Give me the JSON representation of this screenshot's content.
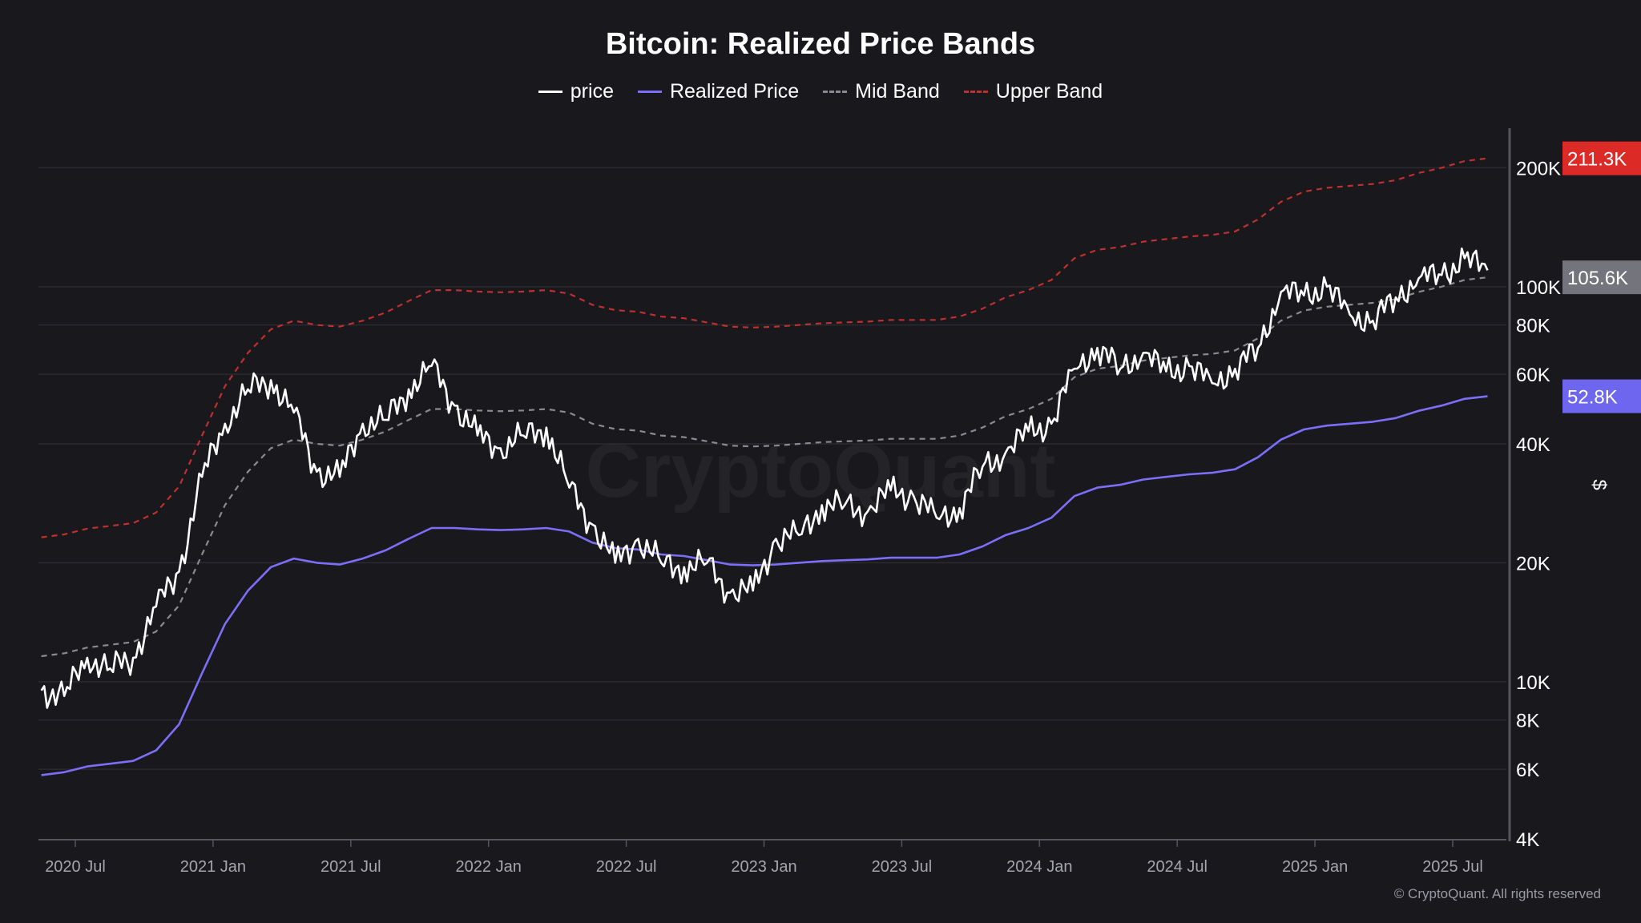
{
  "title": "Bitcoin: Realized Price Bands",
  "footer": "© CryptoQuant. All rights reserved",
  "watermark": "CryptoQuant",
  "colors": {
    "price": "#ffffff",
    "realized": "#7b6ff7",
    "mid": "#8a8a90",
    "upper": "#c0302d",
    "upper_badge": "#dc2a27",
    "mid_badge": "#74747c",
    "realized_badge": "#6f66f0"
  },
  "chart_data": {
    "type": "line",
    "title": "Bitcoin: Realized Price Bands",
    "ylabel": "$",
    "yscale": "log",
    "ylim": [
      4000,
      215000
    ],
    "y_ticks": [
      {
        "v": 4000,
        "label": "4K"
      },
      {
        "v": 6000,
        "label": "6K"
      },
      {
        "v": 8000,
        "label": "8K"
      },
      {
        "v": 10000,
        "label": "10K"
      },
      {
        "v": 20000,
        "label": "20K"
      },
      {
        "v": 40000,
        "label": "40K"
      },
      {
        "v": 60000,
        "label": "60K"
      },
      {
        "v": 80000,
        "label": "80K"
      },
      {
        "v": 100000,
        "label": "100K"
      },
      {
        "v": 200000,
        "label": "200K"
      }
    ],
    "x_ticks": [
      {
        "d": "2020-07",
        "label": "2020 Jul"
      },
      {
        "d": "2021-01",
        "label": "2021 Jan"
      },
      {
        "d": "2021-07",
        "label": "2021 Jul"
      },
      {
        "d": "2022-01",
        "label": "2022 Jan"
      },
      {
        "d": "2022-07",
        "label": "2022 Jul"
      },
      {
        "d": "2023-01",
        "label": "2023 Jan"
      },
      {
        "d": "2023-07",
        "label": "2023 Jul"
      },
      {
        "d": "2024-01",
        "label": "2024 Jan"
      },
      {
        "d": "2024-07",
        "label": "2024 Jul"
      },
      {
        "d": "2025-01",
        "label": "2025 Jan"
      },
      {
        "d": "2025-07",
        "label": "2025 Jul"
      }
    ],
    "x_start": "2020-06",
    "value_unit": "K USD",
    "legend_position": "top-center",
    "grid": true,
    "series": [
      {
        "name": "price",
        "key": "price",
        "style": "solid",
        "values": [
          9.5,
          9.2,
          11.5,
          10.8,
          11.5,
          15.5,
          19,
          33,
          45,
          55,
          58,
          48,
          34,
          33,
          45,
          46,
          55,
          63,
          50,
          42,
          39,
          42,
          44,
          31,
          25,
          20,
          23,
          20,
          19.5,
          20,
          16.8,
          17,
          23,
          23.5,
          28,
          28,
          27,
          30.5,
          29.5,
          26,
          27.5,
          35,
          38,
          43,
          45,
          62,
          70,
          62,
          68,
          61,
          63,
          57,
          62,
          70,
          97,
          95,
          100,
          85,
          82,
          94,
          105,
          107,
          118,
          110
        ]
      },
      {
        "name": "Realized Price",
        "key": "realized",
        "style": "solid",
        "values": [
          5.8,
          5.9,
          6.1,
          6.2,
          6.3,
          6.7,
          7.8,
          10.5,
          14,
          17,
          19.5,
          20.5,
          20,
          19.8,
          20.5,
          21.5,
          23,
          24.5,
          24.5,
          24.3,
          24.2,
          24.3,
          24.5,
          24,
          22.5,
          21.8,
          21.6,
          21,
          20.8,
          20.3,
          19.8,
          19.7,
          19.8,
          20,
          20.2,
          20.3,
          20.4,
          20.6,
          20.6,
          20.6,
          21,
          22,
          23.5,
          24.5,
          26,
          29.5,
          31,
          31.5,
          32.5,
          33,
          33.5,
          33.8,
          34.5,
          37,
          41,
          43.5,
          44.5,
          45,
          45.5,
          46.5,
          48.5,
          50,
          52,
          52.8
        ]
      },
      {
        "name": "Mid Band",
        "key": "mid",
        "style": "dashed",
        "values": [
          11.6,
          11.8,
          12.2,
          12.4,
          12.6,
          13.4,
          15.6,
          21,
          28,
          34,
          39,
          41,
          40,
          39.6,
          41,
          43,
          46,
          49,
          49,
          48.6,
          48.4,
          48.6,
          49,
          48,
          45,
          43.6,
          43.2,
          42,
          41.6,
          40.6,
          39.6,
          39.4,
          39.6,
          40,
          40.4,
          40.6,
          40.8,
          41.2,
          41.2,
          41.2,
          42,
          44,
          47,
          49,
          52,
          59,
          62,
          63,
          65,
          66,
          67,
          67.6,
          69,
          74,
          82,
          87,
          89,
          90,
          91,
          93,
          97,
          100,
          104,
          105.6
        ]
      },
      {
        "name": "Upper Band",
        "key": "upper",
        "style": "dashed",
        "values": [
          23.2,
          23.6,
          24.4,
          24.8,
          25.2,
          26.8,
          31.2,
          42,
          56,
          68,
          78,
          82,
          80,
          79.2,
          82,
          86,
          92,
          98,
          98,
          97.2,
          96.8,
          97.2,
          98,
          96,
          90,
          87.2,
          86.4,
          84,
          83.2,
          81.2,
          79.2,
          78.8,
          79.2,
          80,
          80.8,
          81.2,
          81.6,
          82.4,
          82.4,
          82.4,
          84,
          88,
          94,
          98,
          104,
          118,
          124,
          126,
          130,
          132,
          134,
          135.2,
          138,
          148,
          164,
          174,
          178,
          180,
          182,
          186,
          194,
          200,
          208,
          211.3
        ]
      }
    ],
    "last_value_labels": {
      "upper": "211.3K",
      "mid": "105.6K",
      "realized": "52.8K"
    }
  }
}
